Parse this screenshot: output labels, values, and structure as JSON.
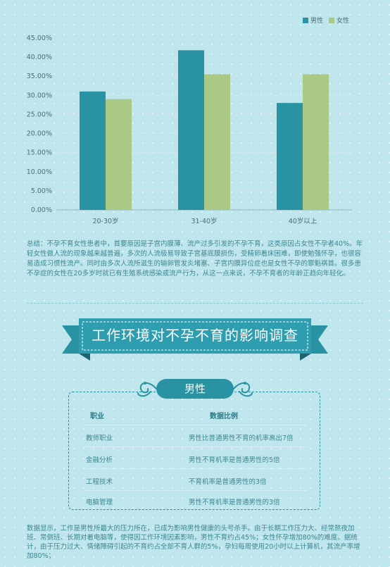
{
  "chart_data": {
    "type": "bar",
    "categories": [
      "20-30岁",
      "31-40岁",
      "40岁以上"
    ],
    "series": [
      {
        "name": "男性",
        "values": [
          31.0,
          41.8,
          28.0
        ],
        "color": "#2a93a3"
      },
      {
        "name": "女性",
        "values": [
          29.0,
          35.5,
          35.5
        ],
        "color": "#a9c985"
      }
    ],
    "yticks": [
      "0.00%",
      "5.00%",
      "10.00%",
      "15.00%",
      "20.00%",
      "25.00%",
      "30.00%",
      "35.00%",
      "40.00%",
      "45.00%"
    ],
    "ylim": [
      0,
      45
    ],
    "grid": true,
    "legend_position": "top-right"
  },
  "summary": "总结：不孕不育女性患者中，首要原因是子宫内膜薄、流产过多引发的不孕不育，这类原因占女性不孕者40%。年轻女性做人流的现象越来越普遍，多次的人流极易导致子宫基底膜损伤，受精卵着床困难，即使勉强怀孕，也很容易造成习惯性流产。同时由多次人流所滋生的输卵管发炎堵塞、子宫内膜异位症也是女性不孕的罪魁祸首。很多患不孕症的女性在20多岁时就已有生殖系统感染或流产行为，从这一点来说，不孕不育者的年龄正趋向年轻化。",
  "banner_title": "工作环境对不孕不育的影响调查",
  "section_label": "男性",
  "table": {
    "headers": [
      "职业",
      "数据比例"
    ],
    "rows": [
      [
        "教师职业",
        "男性比普通男性不育的机率高出7倍"
      ],
      [
        "金融分析",
        "男性不育机率是普通男性的5倍"
      ],
      [
        "工程技术",
        "不育机率是普通男性的3倍"
      ],
      [
        "电脑管理",
        "男性不育机率是普通男性的3倍"
      ]
    ]
  },
  "bottom_text": "数据显示，工作是男性所最大的压力所在，已成为影响男性健康的头号杀手。由于长期工作压力大、经常熬夜加班、常倒班、长期对着电脑等，使得因工作环境因素影响，男性不育约占45%；女性怀孕增加80%的难度。据统计，由于压力过大、情绪障碍引起的不育约占全部不育人群的5%，孕妇每周使用20小时以上计算机，其流产率增加80%；"
}
